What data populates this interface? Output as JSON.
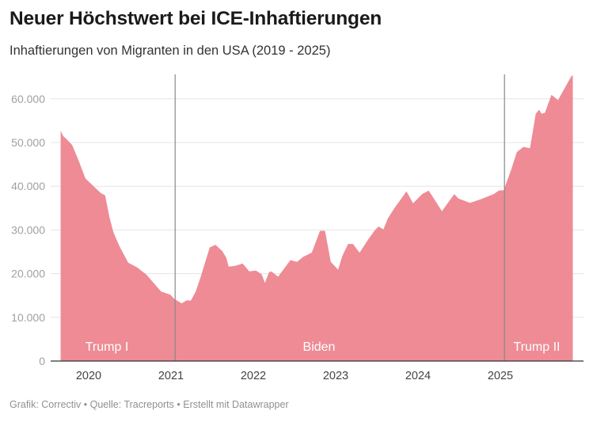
{
  "header": {
    "title": "Neuer Höchstwert bei ICE-Inhaftierungen",
    "subtitle": "Inhaftierungen von Migranten in den USA (2019 - 2025)"
  },
  "footer": {
    "text": "Grafik: Correctiv • Quelle: Tracreports • Erstellt mit Datawrapper"
  },
  "chart_data": {
    "type": "area",
    "title": "Neuer Höchstwert bei ICE-Inhaftierungen",
    "subtitle": "Inhaftierungen von Migranten in den USA (2019 - 2025)",
    "xlabel": "",
    "ylabel": "",
    "x_unit": "decimal year",
    "xlim": [
      2019.66,
      2025.88
    ],
    "ylim": [
      0,
      66000
    ],
    "grid": true,
    "color": "#EE8B95",
    "y_ticks": [
      {
        "value": 0,
        "label": "0"
      },
      {
        "value": 10000,
        "label": "10.000"
      },
      {
        "value": 20000,
        "label": "20.000"
      },
      {
        "value": 30000,
        "label": "30.000"
      },
      {
        "value": 40000,
        "label": "40.000"
      },
      {
        "value": 50000,
        "label": "50.000"
      },
      {
        "value": 60000,
        "label": "60.000"
      }
    ],
    "x_ticks": [
      {
        "value": 2020,
        "label": "2020"
      },
      {
        "value": 2021,
        "label": "2021"
      },
      {
        "value": 2022,
        "label": "2022"
      },
      {
        "value": 2023,
        "label": "2023"
      },
      {
        "value": 2024,
        "label": "2024"
      },
      {
        "value": 2025,
        "label": "2025"
      }
    ],
    "markers": [
      {
        "x": 2021.05,
        "name": "biden-inauguration-line"
      },
      {
        "x": 2025.05,
        "name": "trump-ii-inauguration-line"
      }
    ],
    "periods": [
      {
        "label": "Trump I",
        "from": 2019.66,
        "to": 2021.05
      },
      {
        "label": "Biden",
        "from": 2021.05,
        "to": 2025.05
      },
      {
        "label": "Trump II",
        "from": 2025.05,
        "to": 2025.88
      }
    ],
    "series": [
      {
        "name": "Inhaftierungen",
        "points": [
          [
            2019.66,
            52700
          ],
          [
            2019.69,
            51500
          ],
          [
            2019.74,
            50600
          ],
          [
            2019.8,
            49400
          ],
          [
            2019.88,
            45800
          ],
          [
            2019.96,
            41800
          ],
          [
            2020.06,
            40000
          ],
          [
            2020.15,
            38400
          ],
          [
            2020.2,
            37900
          ],
          [
            2020.25,
            33100
          ],
          [
            2020.3,
            29500
          ],
          [
            2020.37,
            26400
          ],
          [
            2020.48,
            22500
          ],
          [
            2020.59,
            21400
          ],
          [
            2020.7,
            19800
          ],
          [
            2020.88,
            15900
          ],
          [
            2020.99,
            15200
          ],
          [
            2021.04,
            14200
          ],
          [
            2021.13,
            13200
          ],
          [
            2021.19,
            13900
          ],
          [
            2021.24,
            13800
          ],
          [
            2021.3,
            15900
          ],
          [
            2021.36,
            19200
          ],
          [
            2021.47,
            26000
          ],
          [
            2021.54,
            26600
          ],
          [
            2021.62,
            25200
          ],
          [
            2021.67,
            23700
          ],
          [
            2021.7,
            21600
          ],
          [
            2021.78,
            21800
          ],
          [
            2021.87,
            22300
          ],
          [
            2021.95,
            20500
          ],
          [
            2022.03,
            20700
          ],
          [
            2022.1,
            19900
          ],
          [
            2022.14,
            17900
          ],
          [
            2022.19,
            20300
          ],
          [
            2022.22,
            20500
          ],
          [
            2022.3,
            19300
          ],
          [
            2022.45,
            23100
          ],
          [
            2022.53,
            22700
          ],
          [
            2022.61,
            23900
          ],
          [
            2022.71,
            24800
          ],
          [
            2022.81,
            29800
          ],
          [
            2022.87,
            29800
          ],
          [
            2022.94,
            22700
          ],
          [
            2023.03,
            20900
          ],
          [
            2023.08,
            24000
          ],
          [
            2023.15,
            26800
          ],
          [
            2023.21,
            26800
          ],
          [
            2023.29,
            24800
          ],
          [
            2023.39,
            27700
          ],
          [
            2023.47,
            29800
          ],
          [
            2023.52,
            30800
          ],
          [
            2023.58,
            30100
          ],
          [
            2023.63,
            32500
          ],
          [
            2023.71,
            34900
          ],
          [
            2023.86,
            38800
          ],
          [
            2023.94,
            36100
          ],
          [
            2024.05,
            38200
          ],
          [
            2024.13,
            39000
          ],
          [
            2024.29,
            34300
          ],
          [
            2024.44,
            38200
          ],
          [
            2024.49,
            37200
          ],
          [
            2024.63,
            36200
          ],
          [
            2024.76,
            37000
          ],
          [
            2024.92,
            38200
          ],
          [
            2024.98,
            39000
          ],
          [
            2025.04,
            39100
          ],
          [
            2025.13,
            43700
          ],
          [
            2025.2,
            47800
          ],
          [
            2025.28,
            49000
          ],
          [
            2025.36,
            48700
          ],
          [
            2025.43,
            56600
          ],
          [
            2025.47,
            57500
          ],
          [
            2025.5,
            56600
          ],
          [
            2025.54,
            56800
          ],
          [
            2025.62,
            60900
          ],
          [
            2025.7,
            59700
          ],
          [
            2025.86,
            65100
          ],
          [
            2025.88,
            65400
          ]
        ]
      }
    ]
  }
}
